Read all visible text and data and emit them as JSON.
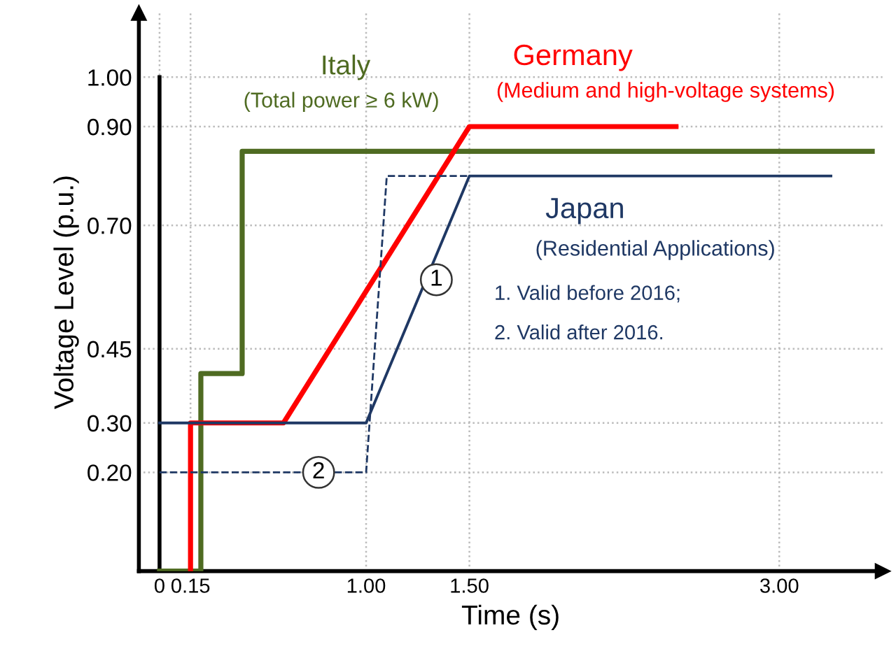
{
  "chart_data": {
    "type": "line",
    "xlabel": "Time (s)",
    "ylabel": "Voltage Level (p.u.)",
    "xlim": [
      -0.1,
      3.5
    ],
    "ylim": [
      0,
      1.13
    ],
    "xticks": [
      0,
      0.15,
      {
        "value": 1.0,
        "label": "1.00"
      },
      {
        "value": 1.5,
        "label": "1.50"
      },
      {
        "value": 3.0,
        "label": "3.00"
      }
    ],
    "yticks": [
      {
        "value": 0.2,
        "label": "0.20"
      },
      {
        "value": 0.3,
        "label": "0.30"
      },
      0.45,
      {
        "value": 0.7,
        "label": "0.70"
      },
      {
        "value": 0.9,
        "label": "0.90"
      },
      {
        "value": 1.0,
        "label": "1.00"
      }
    ],
    "grid": true,
    "legend": false,
    "marker": "none",
    "series": [
      {
        "color": "#000000",
        "x": [
          0,
          0
        ],
        "values": [
          0,
          1.0
        ],
        "line_style": "solid"
      },
      {
        "name": "Italy",
        "color": "#4f6b22",
        "x": [
          0,
          0.2,
          0.2,
          0.4,
          0.4,
          3.45
        ],
        "values": [
          0,
          0,
          0.4,
          0.4,
          0.85,
          0.85
        ],
        "line_style": "solid"
      },
      {
        "name": "Germany",
        "color": "#ff0000",
        "x": [
          0.15,
          0.15,
          0.6,
          1.5,
          2.5
        ],
        "values": [
          0,
          0.3,
          0.3,
          0.9,
          0.9
        ],
        "line_style": "solid"
      },
      {
        "name": "Japan",
        "color": "#1f3864",
        "x": [
          0,
          1.0,
          1.5,
          3.25
        ],
        "values": [
          0.3,
          0.3,
          0.8,
          0.8
        ],
        "line_style": "solid"
      },
      {
        "color": "#1f3864",
        "x": [
          0,
          1.0,
          1.1,
          1.5
        ],
        "values": [
          0.2,
          0.2,
          0.8,
          0.8
        ],
        "line_style": "dashed"
      }
    ],
    "annotations": [
      "(Total power ≥ 6 kW)",
      "(Medium and high-voltage systems)",
      "(Residential Applications)",
      "1. Valid before 2016;",
      "2. Valid after 2016.",
      {
        "text": "1",
        "x": 1.34,
        "y": 0.59
      },
      {
        "text": "2",
        "x": 0.77,
        "y": 0.2
      }
    ]
  }
}
